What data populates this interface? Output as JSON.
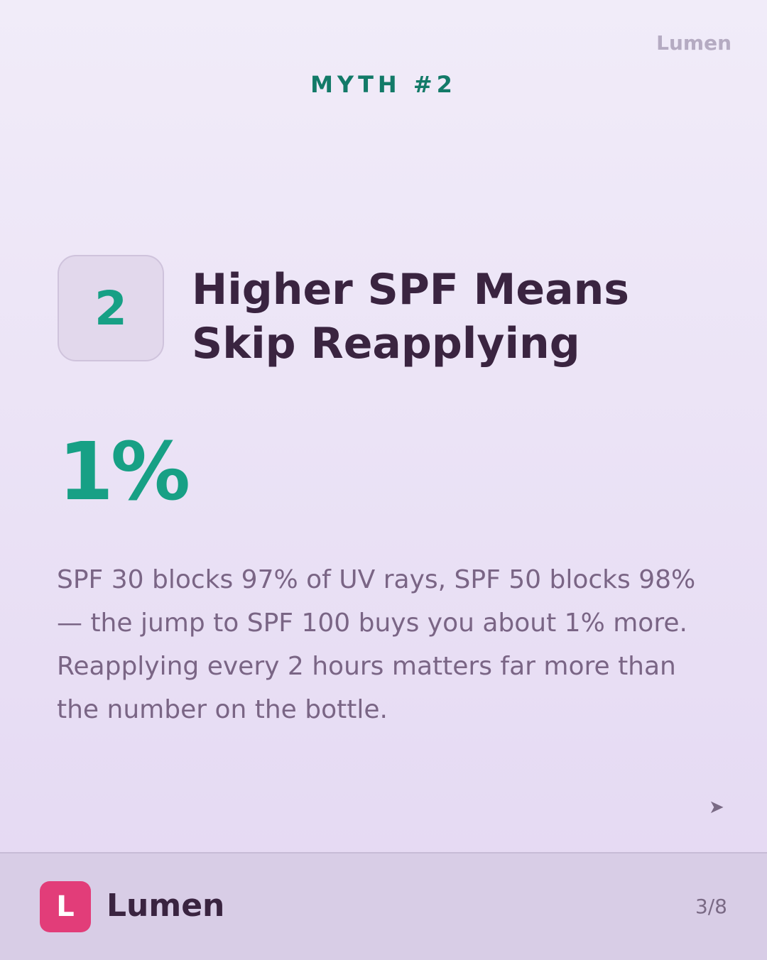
{
  "header": {
    "brand": "Lumen",
    "kicker": "MYTH #2"
  },
  "myth": {
    "number": "2",
    "title_line1": "Higher SPF Means",
    "title_line2": "Skip Reapplying",
    "stat": "1%",
    "body": "SPF 30 blocks 97% of UV rays, SPF 50 blocks 98% — the jump to SPF 100 buys you about 1% more. Reapplying every 2 hours matters far more than the number on the bottle.",
    "next_icon": "➤"
  },
  "footer": {
    "logo_letter": "L",
    "brand": "Lumen",
    "page": "3/8"
  }
}
